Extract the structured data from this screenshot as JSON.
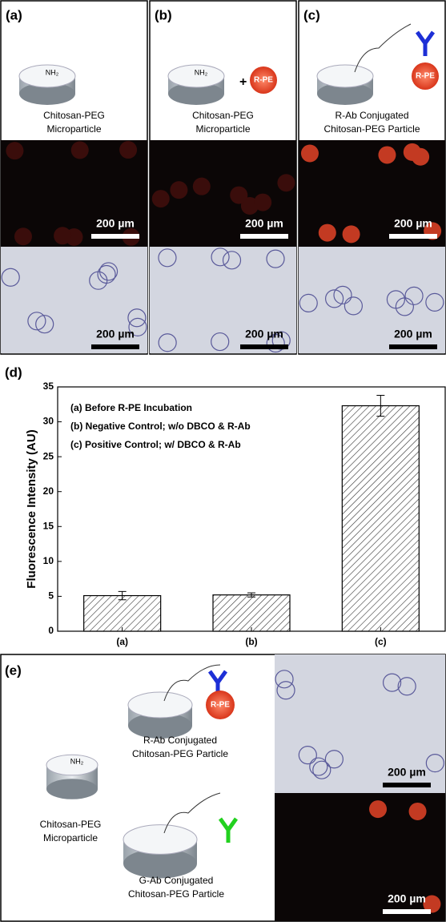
{
  "panels": [
    {
      "label": "(a)",
      "particle_label": "NH₂",
      "caption": [
        "Chitosan-PEG",
        "Microparticle"
      ],
      "scale_bars": [
        "200 µm",
        "200 µm"
      ]
    },
    {
      "label": "(b)",
      "particle_label": "NH₂",
      "plus": "+",
      "bead_label": "R-PE",
      "caption": [
        "Chitosan-PEG",
        "Microparticle"
      ],
      "scale_bars": [
        "200 µm",
        "200 µm"
      ]
    },
    {
      "label": "(c)",
      "bead_label": "R-PE",
      "caption": [
        "R-Ab Conjugated",
        "Chitosan-PEG  Particle"
      ],
      "scale_bars": [
        "200 µm",
        "200 µm"
      ]
    }
  ],
  "chart_data": {
    "type": "bar",
    "label": "(d)",
    "y_label": "Fluorescence Intensity (AU)",
    "legend": [
      "(a) Before R-PE Incubation",
      "(b) Negative Control; w/o DBCO & R-Ab",
      "(c) Positive Control; w/ DBCO & R-Ab"
    ],
    "categories": [
      "(a)",
      "(b)",
      "(c)"
    ],
    "values": [
      5.1,
      5.2,
      32.3
    ],
    "errors": [
      0.6,
      0.3,
      1.5
    ],
    "color": "#000000",
    "ylim": [
      0,
      35
    ],
    "yticks": [
      0,
      5,
      10,
      15,
      20,
      25,
      30,
      35
    ]
  },
  "panel_e": {
    "label": "(e)",
    "particle_label": "NH₂",
    "bead_label": "R-PE",
    "captions": [
      [
        "R-Ab Conjugated",
        "Chitosan-PEG  Particle"
      ],
      [
        "Chitosan-PEG",
        "Microparticle"
      ],
      [
        "G-Ab Conjugated",
        "Chitosan-PEG  Particle"
      ]
    ],
    "scale_bars": [
      "200 µm",
      "200 µm"
    ]
  }
}
